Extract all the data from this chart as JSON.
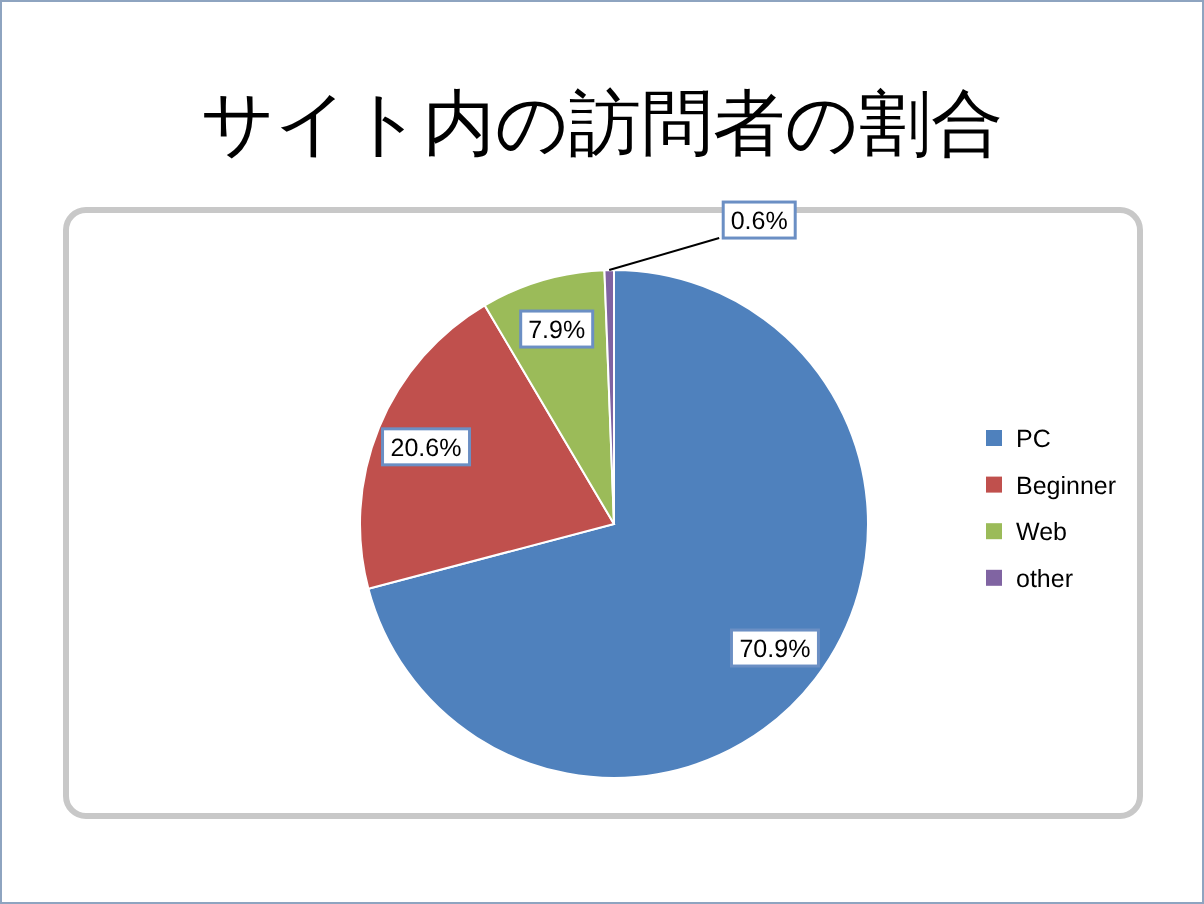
{
  "chart_data": {
    "type": "pie",
    "title": "サイト内の訪問者の割合",
    "categories": [
      "PC",
      "Beginner",
      "Web",
      "other"
    ],
    "values": [
      70.9,
      20.6,
      7.9,
      0.6
    ],
    "colors": [
      "#4f81bd",
      "#c0504d",
      "#9bbb59",
      "#8064a2"
    ],
    "value_labels": [
      "70.9%",
      "20.6%",
      "7.9%",
      "0.6%"
    ],
    "legend": "right"
  }
}
